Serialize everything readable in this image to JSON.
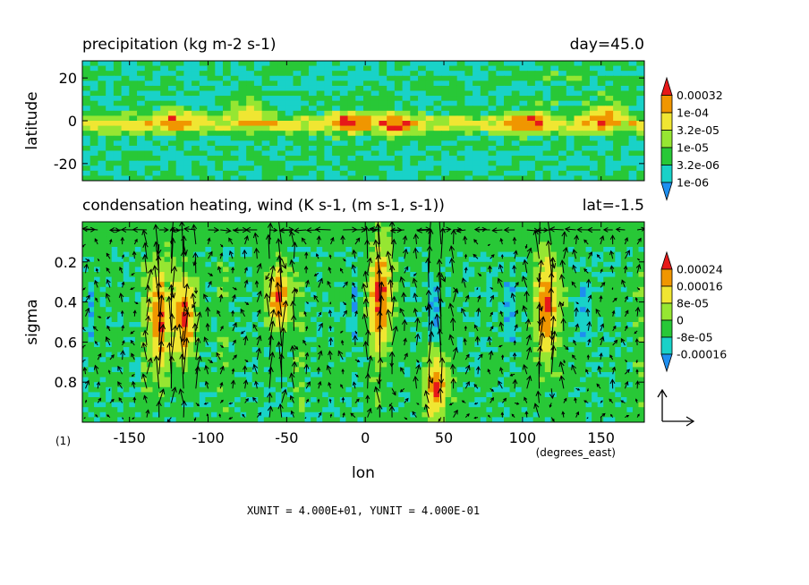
{
  "panels": {
    "precip": {
      "title": "precipitation (kg m-2 s-1)",
      "right_title": "day=45.0",
      "ylabel": "latitude"
    },
    "heating": {
      "title": "condensation heating, wind (K s-1, (m s-1, s-1))",
      "right_title": "lat=-1.5",
      "ylabel": "sigma",
      "xlabel": "lon",
      "x_unit": "(degrees_east)",
      "frame_label": "(1)"
    }
  },
  "footer": {
    "units_text": "XUNIT = 4.000E+01, YUNIT = 4.000E-01"
  },
  "chart_data": [
    {
      "type": "heatmap",
      "title": "precipitation (kg m-2 s-1)",
      "subtitle": "day=45.0",
      "ylabel": "latitude",
      "xlim": [
        -180,
        177.5
      ],
      "ylim": [
        -28,
        28
      ],
      "y_ticks": [
        -20,
        0,
        20
      ],
      "y_tick_labels": [
        "-20",
        "0",
        "20"
      ],
      "colorbar": {
        "levels": [
          1e-06,
          3.2e-06,
          1e-05,
          3.2e-05,
          0.0001,
          0.00032
        ],
        "labels": [
          "1e-06",
          "3.2e-06",
          "1e-05",
          "3.2e-05",
          "1e-04",
          "0.00032"
        ],
        "colors": [
          "#1e8ff0",
          "#19d2c8",
          "#28c837",
          "#96e632",
          "#f0e632",
          "#f09600",
          "#e61919"
        ]
      },
      "features": [
        {
          "name": "equatorial rain band",
          "lat_range": [
            -5,
            2
          ]
        },
        {
          "lon": -120,
          "lat": 0,
          "level": "0.00032"
        },
        {
          "lon": -75,
          "lat": 5,
          "level": "0.00032"
        },
        {
          "lon": -10,
          "lat": 0,
          "level": "0.00032"
        },
        {
          "lon": 20,
          "lat": -1,
          "level": "0.00032"
        },
        {
          "lon": 105,
          "lat": 0,
          "level": "0.00032"
        },
        {
          "lon": 150,
          "lat": 2,
          "level": "0.00032"
        }
      ]
    },
    {
      "type": "heatmap",
      "title": "condensation heating, wind (K s-1, (m s-1, s-1))",
      "subtitle": "lat=-1.5",
      "xlabel": "lon",
      "ylabel": "sigma",
      "x_unit": "(degrees_east)",
      "xlim": [
        -180,
        177.5
      ],
      "ylim": [
        1.0,
        0.0
      ],
      "x_ticks": [
        -150,
        -100,
        -50,
        0,
        50,
        100,
        150
      ],
      "x_tick_labels": [
        "-150",
        "-100",
        "-50",
        "0",
        "50",
        "100",
        "150"
      ],
      "y_ticks": [
        0.2,
        0.4,
        0.6,
        0.8
      ],
      "y_tick_labels": [
        "0.2",
        "0.4",
        "0.6",
        "0.8"
      ],
      "colorbar": {
        "levels": [
          -0.00016,
          -8e-05,
          0,
          8e-05,
          0.00016,
          0.00024
        ],
        "labels": [
          "-0.00016",
          "-8e-05",
          "0",
          "8e-05",
          "0.00016",
          "0.00024"
        ],
        "colors": [
          "#1e8ff0",
          "#19d2c8",
          "#28c837",
          "#96e632",
          "#f0e632",
          "#f09600",
          "#e61919"
        ]
      },
      "vector_reference": {
        "xunit": "4.000E+01",
        "yunit": "4.000E-01"
      },
      "heating_maxima": [
        {
          "lon": -130,
          "sigma_range": [
            0.3,
            0.65
          ]
        },
        {
          "lon": -115,
          "sigma_range": [
            0.35,
            0.6
          ]
        },
        {
          "lon": -55,
          "sigma_range": [
            0.3,
            0.45
          ]
        },
        {
          "lon": 10,
          "sigma_range": [
            0.2,
            0.55
          ]
        },
        {
          "lon": 45,
          "sigma_range": [
            0.75,
            0.9
          ]
        },
        {
          "lon": 115,
          "sigma_range": [
            0.25,
            0.6
          ]
        }
      ]
    }
  ]
}
